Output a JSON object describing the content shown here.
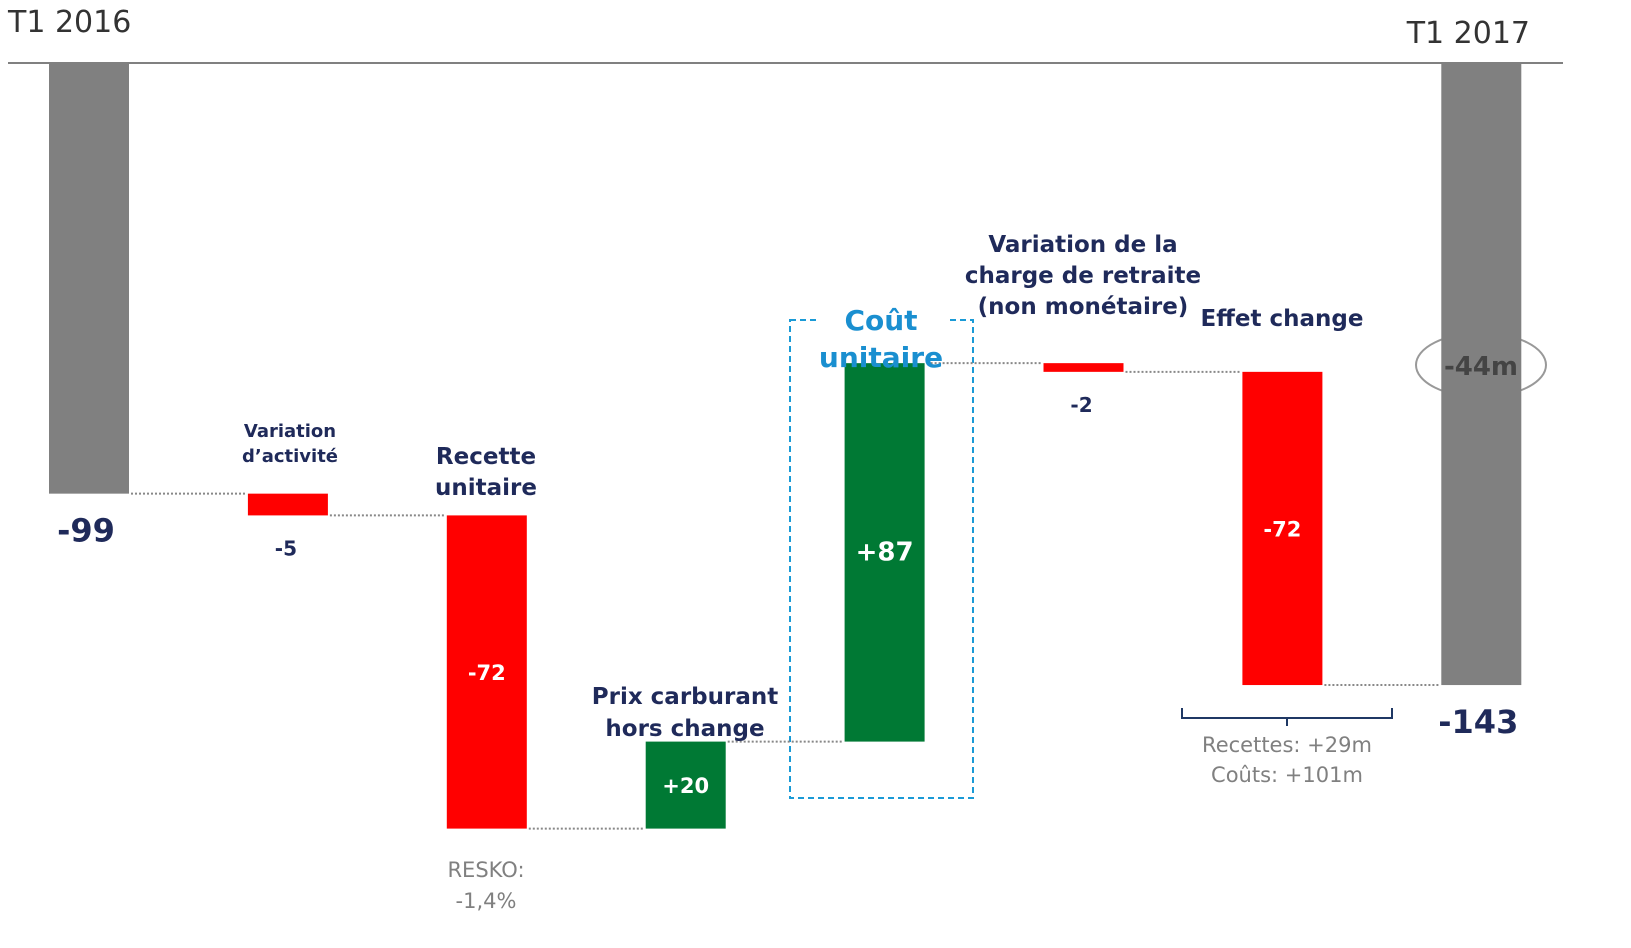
{
  "chart_data": {
    "type": "waterfall",
    "categories": [
      "T1 2016",
      "Variation\nd’activité",
      "Recette\nunitaire",
      "Prix carburant\nhors change",
      "Coût\nunitaire",
      "Variation de la\ncharge de retraite\n(non monétaire)",
      "Effet change",
      "T1 2017"
    ],
    "values": [
      -99,
      -5,
      -72,
      20,
      87,
      -2,
      -72,
      -143
    ],
    "value_labels": [
      "-99",
      "-5",
      "-72",
      "+20",
      "+87",
      "-2",
      "-72",
      "-143"
    ],
    "colors": {
      "total": "#808080",
      "increase": "#007934",
      "decrease": "#ff0000"
    },
    "annotations": [
      "-44m",
      "RESKO:\n-1,4%",
      "Recettes: +29m\nCoûts: +101m"
    ]
  }
}
